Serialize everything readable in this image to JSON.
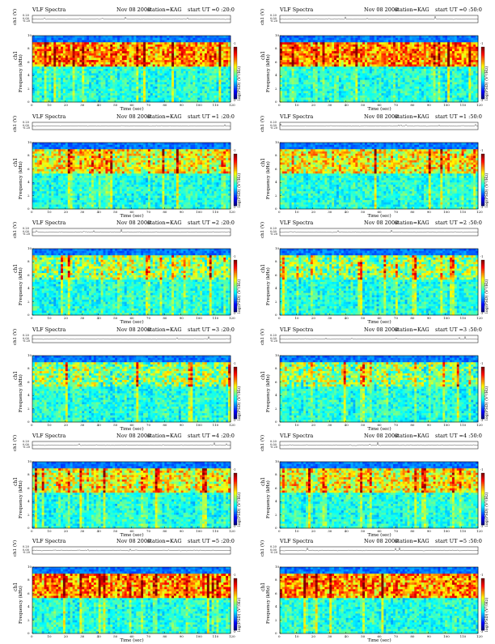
{
  "chart_data": [
    {
      "type": "heatmap",
      "title": "VLF Spectra",
      "date": "Nov 08 2008",
      "station": "station=KAG",
      "start": "start  UT =0 :20:0",
      "ch_label": "ch1 (V)",
      "ch_ticks": [
        "0.20",
        "0.00",
        "-0.20"
      ],
      "ylabel": "Frequency  (kHz)",
      "ylabel2": "ch1",
      "yticks": [
        "0",
        "2",
        "4",
        "6",
        "8",
        "10"
      ],
      "xlabel": "Time  (sec)",
      "xticks": [
        "0",
        "10",
        "20",
        "30",
        "40",
        "50",
        "60",
        "70",
        "80",
        "90",
        "100",
        "110",
        "120"
      ],
      "xlim": [
        0,
        120
      ],
      "ylim": [
        0,
        10
      ],
      "colorbar_label": "log(PSD) (V²/Hz)",
      "colorbar_ticks": [
        "-1",
        "-3"
      ],
      "cmap": "jet",
      "activity": "high"
    },
    {
      "type": "heatmap",
      "title": "VLF Spectra",
      "date": "Nov 08 2008",
      "station": "station=KAG",
      "start": "start  UT =0 :50:0",
      "ch_label": "ch1 (V)",
      "ch_ticks": [
        "0.20",
        "0.00",
        "-0.20"
      ],
      "ylabel": "Frequency  (kHz)",
      "ylabel2": "ch1",
      "yticks": [
        "0",
        "2",
        "4",
        "6",
        "8",
        "10"
      ],
      "xlabel": "Time  (sec)",
      "xticks": [
        "0",
        "10",
        "20",
        "30",
        "40",
        "50",
        "60",
        "70",
        "80",
        "90",
        "100",
        "110",
        "120"
      ],
      "xlim": [
        0,
        120
      ],
      "ylim": [
        0,
        10
      ],
      "colorbar_label": "log(PSD) (V²/Hz)",
      "colorbar_ticks": [
        "-1",
        "-3"
      ],
      "cmap": "jet",
      "activity": "high"
    },
    {
      "type": "heatmap",
      "title": "VLF Spectra",
      "date": "Nov 08 2008",
      "station": "station=KAG",
      "start": "start  UT =1 :20:0",
      "ch_label": "ch1 (V)",
      "ch_ticks": [
        "0.20",
        "0.00",
        "-0.20"
      ],
      "ylabel": "Frequency  (kHz)",
      "ylabel2": "ch1",
      "yticks": [
        "0",
        "2",
        "4",
        "6",
        "8",
        "10"
      ],
      "xlabel": "Time  (sec)",
      "xticks": [
        "0",
        "10",
        "20",
        "30",
        "40",
        "50",
        "60",
        "70",
        "80",
        "90",
        "100",
        "110",
        "120"
      ],
      "xlim": [
        0,
        120
      ],
      "ylim": [
        0,
        10
      ],
      "colorbar_label": "log(PSD) (V²/Hz)",
      "colorbar_ticks": [
        "-1",
        "-3"
      ],
      "cmap": "jet",
      "activity": "medium"
    },
    {
      "type": "heatmap",
      "title": "VLF Spectra",
      "date": "Nov 08 2008",
      "station": "station=KAG",
      "start": "start  UT =1 :50:0",
      "ch_label": "ch1 (V)",
      "ch_ticks": [
        "0.20",
        "0.00",
        "-0.20"
      ],
      "ylabel": "Frequency  (kHz)",
      "ylabel2": "ch1",
      "yticks": [
        "0",
        "2",
        "4",
        "6",
        "8",
        "10"
      ],
      "xlabel": "Time  (sec)",
      "xticks": [
        "0",
        "10",
        "20",
        "30",
        "40",
        "50",
        "60",
        "70",
        "80",
        "90",
        "100",
        "110",
        "120"
      ],
      "xlim": [
        0,
        120
      ],
      "ylim": [
        0,
        10
      ],
      "colorbar_label": "log(PSD) (V²/Hz)",
      "colorbar_ticks": [
        "-1",
        "-3"
      ],
      "cmap": "jet",
      "activity": "medium"
    },
    {
      "type": "heatmap",
      "title": "VLF Spectra",
      "date": "Nov 08 2008",
      "station": "station=KAG",
      "start": "start  UT =2 :20:0",
      "ch_label": "ch1 (V)",
      "ch_ticks": [
        "0.20",
        "0.00",
        "-0.20"
      ],
      "ylabel": "Frequency  (kHz)",
      "ylabel2": "ch1",
      "yticks": [
        "0",
        "2",
        "4",
        "6",
        "8",
        "10"
      ],
      "xlabel": "Time  (sec)",
      "xticks": [
        "0",
        "10",
        "20",
        "30",
        "40",
        "50",
        "60",
        "70",
        "80",
        "90",
        "100",
        "110",
        "120"
      ],
      "xlim": [
        0,
        120
      ],
      "ylim": [
        0,
        10
      ],
      "colorbar_label": "log(PSD) (V²/Hz)",
      "colorbar_ticks": [
        "-1",
        "-3"
      ],
      "cmap": "jet",
      "activity": "low"
    },
    {
      "type": "heatmap",
      "title": "VLF Spectra",
      "date": "Nov 08 2008",
      "station": "station=KAG",
      "start": "start  UT =2 :50:0",
      "ch_label": "ch1 (V)",
      "ch_ticks": [
        "0.20",
        "0.00",
        "-0.20"
      ],
      "ylabel": "Frequency  (kHz)",
      "ylabel2": "ch1",
      "yticks": [
        "0",
        "2",
        "4",
        "6",
        "8",
        "10"
      ],
      "xlabel": "Time  (sec)",
      "xticks": [
        "0",
        "10",
        "20",
        "30",
        "40",
        "50",
        "60",
        "70",
        "80",
        "90",
        "100",
        "110",
        "120"
      ],
      "xlim": [
        0,
        120
      ],
      "ylim": [
        0,
        10
      ],
      "colorbar_label": "log(PSD) (V²/Hz)",
      "colorbar_ticks": [
        "-1",
        "-3"
      ],
      "cmap": "jet",
      "activity": "low"
    },
    {
      "type": "heatmap",
      "title": "VLF Spectra",
      "date": "Nov 08 2008",
      "station": "station=KAG",
      "start": "start  UT =3 :20:0",
      "ch_label": "ch1 (V)",
      "ch_ticks": [
        "0.20",
        "0.00",
        "-0.20"
      ],
      "ylabel": "Frequency  (kHz)",
      "ylabel2": "ch1",
      "yticks": [
        "0",
        "2",
        "4",
        "6",
        "8",
        "10"
      ],
      "xlabel": "Time  (sec)",
      "xticks": [
        "0",
        "10",
        "20",
        "30",
        "40",
        "50",
        "60",
        "70",
        "80",
        "90",
        "100",
        "110",
        "120"
      ],
      "xlim": [
        0,
        120
      ],
      "ylim": [
        0,
        10
      ],
      "colorbar_label": "log(PSD) (V²/Hz)",
      "colorbar_ticks": [
        "-1",
        "-3"
      ],
      "cmap": "jet",
      "activity": "low"
    },
    {
      "type": "heatmap",
      "title": "VLF Spectra",
      "date": "Nov 08 2008",
      "station": "station=KAG",
      "start": "start  UT =3 :50:0",
      "ch_label": "ch1 (V)",
      "ch_ticks": [
        "0.20",
        "0.00",
        "-0.20"
      ],
      "ylabel": "Frequency  (kHz)",
      "ylabel2": "ch1",
      "yticks": [
        "0",
        "2",
        "4",
        "6",
        "8",
        "10"
      ],
      "xlabel": "Time  (sec)",
      "xticks": [
        "0",
        "10",
        "20",
        "30",
        "40",
        "50",
        "60",
        "70",
        "80",
        "90",
        "100",
        "110",
        "120"
      ],
      "xlim": [
        0,
        120
      ],
      "ylim": [
        0,
        10
      ],
      "colorbar_label": "log(PSD) (V²/Hz)",
      "colorbar_ticks": [
        "-1",
        "-3"
      ],
      "cmap": "jet",
      "activity": "low"
    },
    {
      "type": "heatmap",
      "title": "VLF Spectra",
      "date": "Nov 08 2008",
      "station": "station=KAG",
      "start": "start  UT =4 :20:0",
      "ch_label": "ch1 (V)",
      "ch_ticks": [
        "0.20",
        "0.00",
        "-0.20"
      ],
      "ylabel": "Frequency  (kHz)",
      "ylabel2": "ch1",
      "yticks": [
        "0",
        "2",
        "4",
        "6",
        "8",
        "10"
      ],
      "xlabel": "Time  (sec)",
      "xticks": [
        "0",
        "10",
        "20",
        "30",
        "40",
        "50",
        "60",
        "70",
        "80",
        "90",
        "100",
        "110",
        "120"
      ],
      "xlim": [
        0,
        120
      ],
      "ylim": [
        0,
        10
      ],
      "colorbar_label": "log(PSD) (V²/Hz)",
      "colorbar_ticks": [
        "-1",
        "-3"
      ],
      "cmap": "jet",
      "activity": "medium"
    },
    {
      "type": "heatmap",
      "title": "VLF Spectra",
      "date": "Nov 08 2008",
      "station": "station=KAG",
      "start": "start  UT =4 :50:0",
      "ch_label": "ch1 (V)",
      "ch_ticks": [
        "0.20",
        "0.00",
        "-0.20"
      ],
      "ylabel": "Frequency  (kHz)",
      "ylabel2": "ch1",
      "yticks": [
        "0",
        "2",
        "4",
        "6",
        "8",
        "10"
      ],
      "xlabel": "Time  (sec)",
      "xticks": [
        "0",
        "10",
        "20",
        "30",
        "40",
        "50",
        "60",
        "70",
        "80",
        "90",
        "100",
        "110",
        "120"
      ],
      "xlim": [
        0,
        120
      ],
      "ylim": [
        0,
        10
      ],
      "colorbar_label": "log(PSD) (V²/Hz)",
      "colorbar_ticks": [
        "-1",
        "-3"
      ],
      "cmap": "jet",
      "activity": "medium"
    },
    {
      "type": "heatmap",
      "title": "VLF Spectra",
      "date": "Nov 08 2008",
      "station": "station=KAG",
      "start": "start  UT =5 :20:0",
      "ch_label": "ch1 (V)",
      "ch_ticks": [
        "0.20",
        "0.00",
        "-0.20"
      ],
      "ylabel": "Frequency  (kHz)",
      "ylabel2": "ch1",
      "yticks": [
        "0",
        "2",
        "4",
        "6",
        "8",
        "10"
      ],
      "xlabel": "Time  (sec)",
      "xticks": [
        "0",
        "10",
        "20",
        "30",
        "40",
        "50",
        "60",
        "70",
        "80",
        "90",
        "100",
        "110",
        "120"
      ],
      "xlim": [
        0,
        120
      ],
      "ylim": [
        0,
        10
      ],
      "colorbar_label": "log(PSD) (V²/Hz)",
      "colorbar_ticks": [
        "-1",
        "-3"
      ],
      "cmap": "jet",
      "activity": "high"
    },
    {
      "type": "heatmap",
      "title": "VLF Spectra",
      "date": "Nov 08 2008",
      "station": "station=KAG",
      "start": "start  UT =5 :50:0",
      "ch_label": "ch1 (V)",
      "ch_ticks": [
        "0.20",
        "0.00",
        "-0.20"
      ],
      "ylabel": "Frequency  (kHz)",
      "ylabel2": "ch1",
      "yticks": [
        "0",
        "2",
        "4",
        "6",
        "8",
        "10"
      ],
      "xlabel": "Time  (sec)",
      "xticks": [
        "0",
        "10",
        "20",
        "30",
        "40",
        "50",
        "60",
        "70",
        "80",
        "90",
        "100",
        "110",
        "120"
      ],
      "xlim": [
        0,
        120
      ],
      "ylim": [
        0,
        10
      ],
      "colorbar_label": "log(PSD) (V²/Hz)",
      "colorbar_ticks": [
        "-1",
        "-3"
      ],
      "cmap": "jet",
      "activity": "high"
    }
  ]
}
